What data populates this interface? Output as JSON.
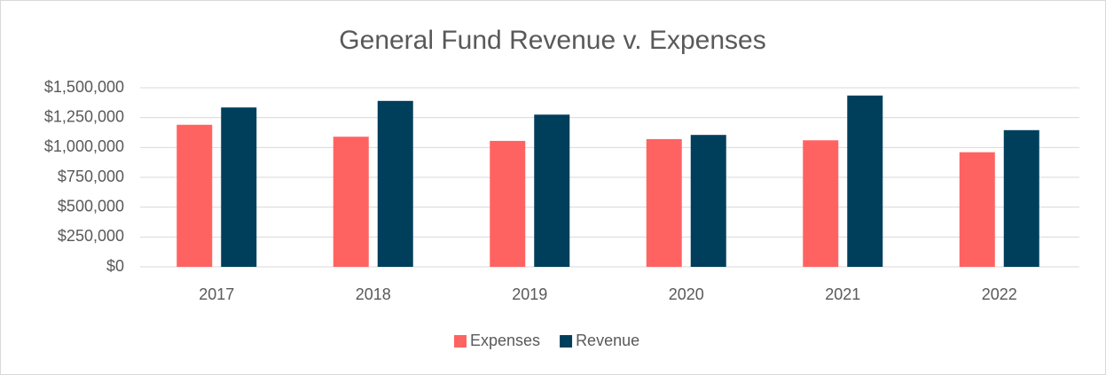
{
  "chart_data": {
    "type": "bar",
    "title": "General Fund Revenue v. Expenses",
    "categories": [
      "2017",
      "2018",
      "2019",
      "2020",
      "2021",
      "2022"
    ],
    "series": [
      {
        "name": "Expenses",
        "color": "#ff6361",
        "values": [
          1190000,
          1090000,
          1055000,
          1070000,
          1060000,
          960000
        ]
      },
      {
        "name": "Revenue",
        "color": "#003f5c",
        "values": [
          1335000,
          1390000,
          1275000,
          1105000,
          1435000,
          1145000
        ]
      }
    ],
    "ylim": [
      0,
      1500000
    ],
    "yticks": [
      {
        "value": 0,
        "label": "$0"
      },
      {
        "value": 250000,
        "label": "$250,000"
      },
      {
        "value": 500000,
        "label": "$500,000"
      },
      {
        "value": 750000,
        "label": "$750,000"
      },
      {
        "value": 1000000,
        "label": "$1,000,000"
      },
      {
        "value": 1250000,
        "label": "$1,250,000"
      },
      {
        "value": 1500000,
        "label": "$1,500,000"
      }
    ],
    "grid": true,
    "legend": "bottom"
  }
}
